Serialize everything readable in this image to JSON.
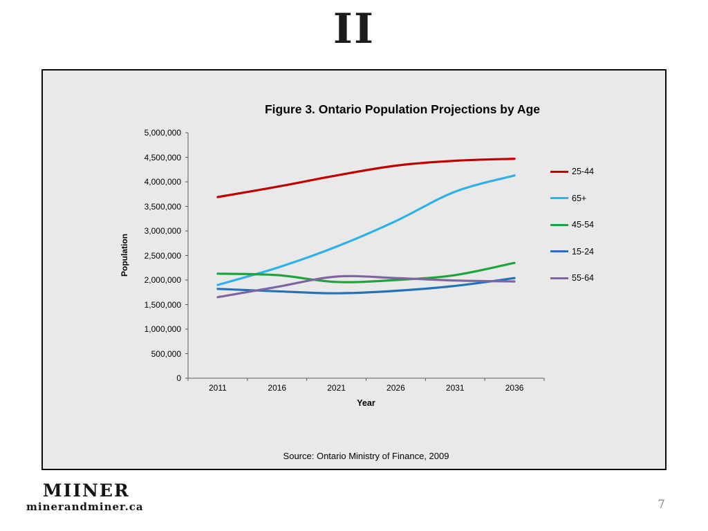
{
  "slide": {
    "logo_mark": "II",
    "page_number": "7",
    "footer_logo": "MIINER",
    "footer_url": "minerandminer.ca"
  },
  "chart_data": {
    "type": "line",
    "title": "Figure 3. Ontario Population Projections by Age",
    "xlabel": "Year",
    "ylabel": "Population",
    "x": [
      "2011",
      "2016",
      "2021",
      "2026",
      "2031",
      "2036"
    ],
    "ylim": [
      0,
      5000000
    ],
    "ytick_step": 500000,
    "ytick_labels": [
      "5,000,000",
      "4,500,000",
      "4,000,000",
      "3,500,000",
      "3,000,000",
      "2,500,000",
      "2,000,000",
      "1,500,000",
      "1,000,000",
      "500,000",
      "0"
    ],
    "grid": false,
    "legend_position": "right",
    "series": [
      {
        "name": "25-44",
        "color": "#C00000",
        "values": [
          3690000,
          3900000,
          4130000,
          4330000,
          4430000,
          4470000
        ]
      },
      {
        "name": "65+",
        "color": "#2DB1E8",
        "values": [
          1900000,
          2250000,
          2680000,
          3200000,
          3800000,
          4130000
        ]
      },
      {
        "name": "45-54",
        "color": "#1EA43C",
        "values": [
          2130000,
          2100000,
          1960000,
          2000000,
          2100000,
          2350000
        ]
      },
      {
        "name": "15-24",
        "color": "#2472B8",
        "values": [
          1820000,
          1770000,
          1730000,
          1780000,
          1880000,
          2040000
        ]
      },
      {
        "name": "55-64",
        "color": "#8064A2",
        "values": [
          1650000,
          1860000,
          2070000,
          2040000,
          1990000,
          1970000
        ]
      }
    ],
    "source": "Source: Ontario Ministry of Finance, 2009"
  }
}
